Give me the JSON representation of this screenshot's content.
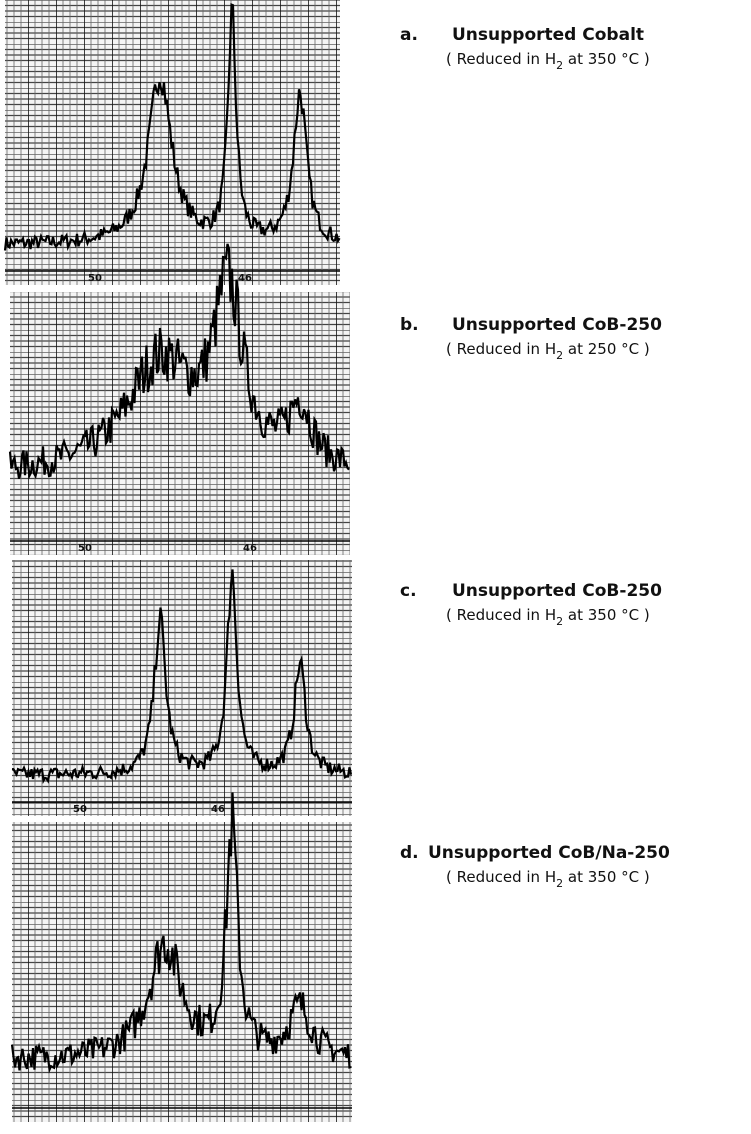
{
  "panels": [
    {
      "letter": "a.",
      "title": "Unsupported Cobalt",
      "condition": {
        "before": "( Reduced in H",
        "sub": "2",
        "after": " at 350 °C )"
      },
      "axis_labels": [
        "50",
        "46"
      ]
    },
    {
      "letter": "b.",
      "title": "Unsupported CoB-250",
      "condition": {
        "before": "( Reduced in H",
        "sub": "2",
        "after": " at 250 °C )"
      },
      "axis_labels": [
        "50",
        "46"
      ]
    },
    {
      "letter": "c.",
      "title": "Unsupported CoB-250",
      "condition": {
        "before": "( Reduced in H",
        "sub": "2",
        "after": " at 350 °C )"
      },
      "axis_labels": [
        "50",
        "46"
      ]
    },
    {
      "letter": "d.",
      "title": "Unsupported CoB/Na-250",
      "condition": {
        "before": "( Reduced in H",
        "sub": "2",
        "after": " at 350 °C )"
      },
      "axis_labels": []
    }
  ]
}
